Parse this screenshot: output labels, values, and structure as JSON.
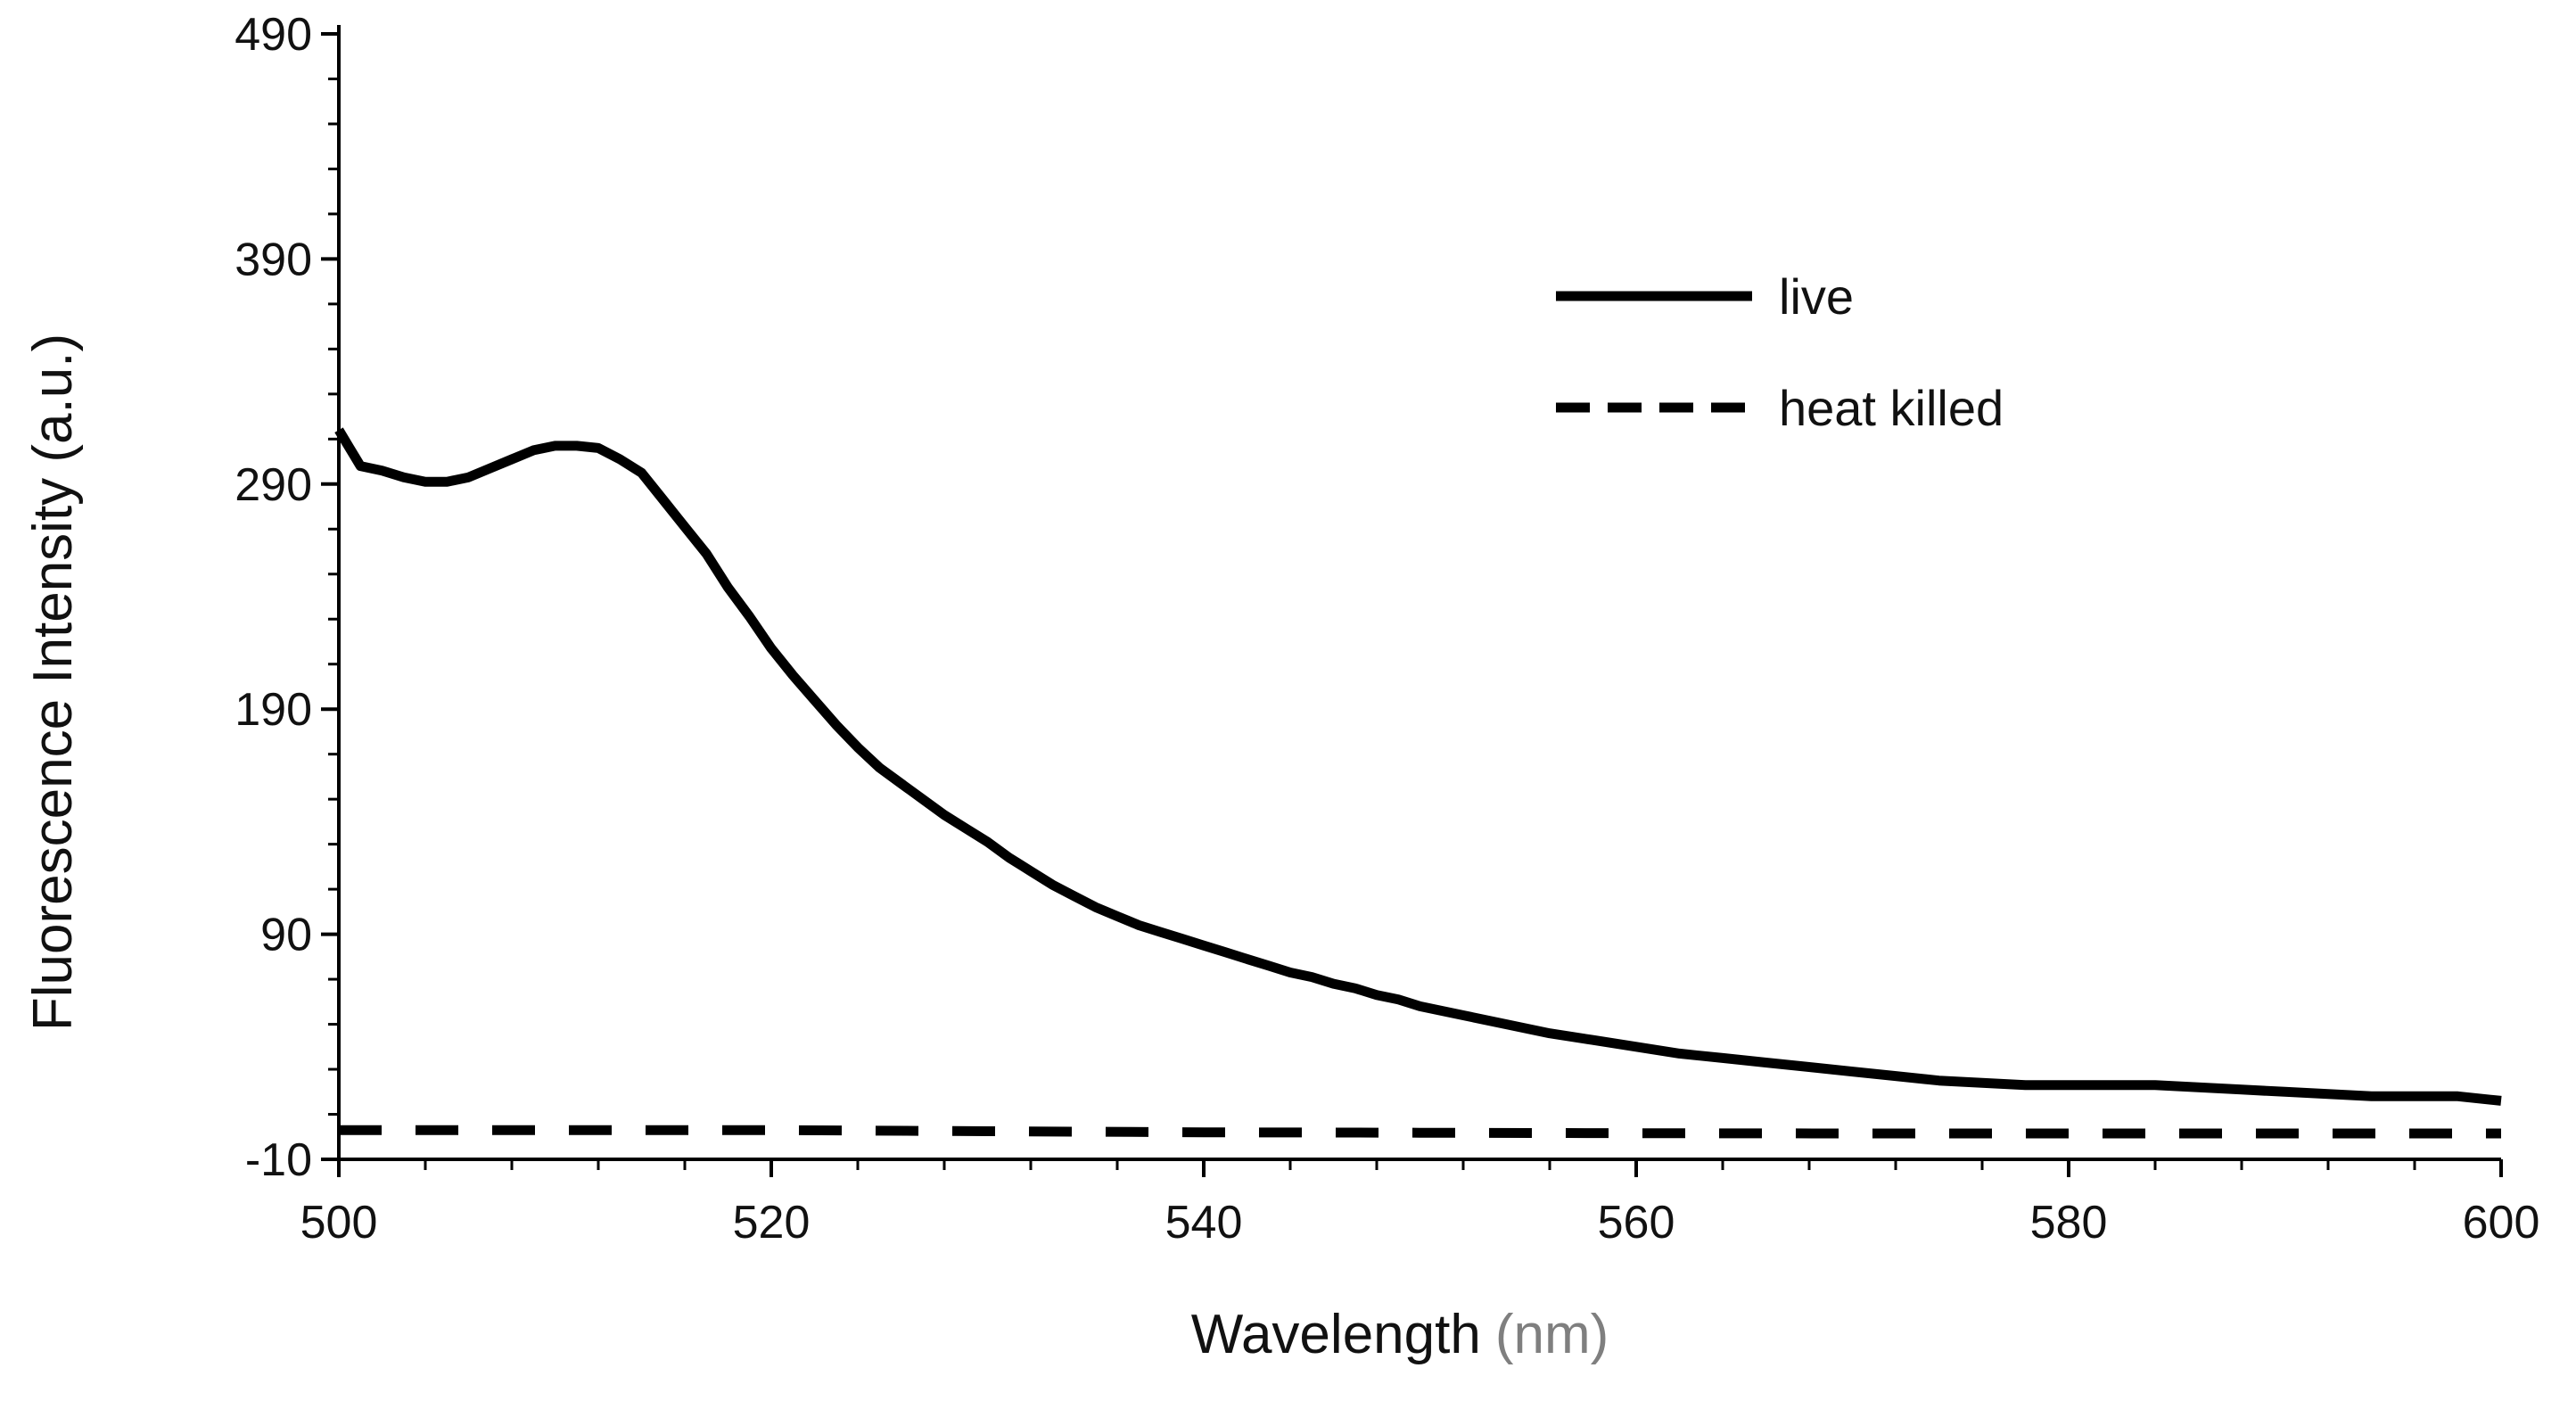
{
  "chart_data": {
    "type": "line",
    "title": "",
    "xlabel": "Wavelength",
    "xlabel_unit": "(nm)",
    "ylabel": "Fluorescence Intensity (a.u.)",
    "xlim": [
      500,
      600
    ],
    "ylim": [
      -10,
      490
    ],
    "xticks": [
      500,
      520,
      540,
      560,
      580,
      600
    ],
    "yticks": [
      -10,
      90,
      190,
      290,
      390,
      490
    ],
    "grid": false,
    "legend_position": "top-right",
    "colors": {
      "axis": "#000000",
      "series": "#000000",
      "unit_text": "#7f7f7f"
    },
    "series": [
      {
        "name": "live",
        "style": "solid",
        "x": [
          500,
          500.5,
          501,
          502,
          503,
          504,
          505,
          506,
          507,
          508,
          509,
          510,
          511,
          512,
          513,
          514,
          515,
          516,
          517,
          518,
          519,
          520,
          521,
          522,
          523,
          524,
          525,
          526,
          527,
          528,
          529,
          530,
          531,
          532,
          533,
          534,
          535,
          536,
          537,
          538,
          539,
          540,
          541,
          542,
          543,
          544,
          545,
          546,
          547,
          548,
          549,
          550,
          552,
          554,
          556,
          558,
          560,
          562,
          564,
          566,
          568,
          570,
          572,
          574,
          576,
          578,
          580,
          582,
          584,
          586,
          588,
          590,
          592,
          594,
          596,
          598,
          600
        ],
        "y": [
          314,
          306,
          298,
          296,
          293,
          291,
          291,
          293,
          297,
          301,
          305,
          307,
          307,
          306,
          301,
          295,
          283,
          271,
          259,
          244,
          231,
          217,
          205,
          194,
          183,
          173,
          164,
          157,
          150,
          143,
          137,
          131,
          124,
          118,
          112,
          107,
          102,
          98,
          94,
          91,
          88,
          85,
          82,
          79,
          76,
          73,
          71,
          68,
          66,
          63,
          61,
          58,
          54,
          50,
          46,
          43,
          40,
          37,
          35,
          33,
          31,
          29,
          27,
          25,
          24,
          23,
          23,
          23,
          23,
          22,
          21,
          20,
          19,
          18,
          18,
          18,
          16
        ]
      },
      {
        "name": "heat killed",
        "style": "dashed",
        "x": [
          500,
          510,
          520,
          530,
          540,
          550,
          560,
          570,
          580,
          590,
          600
        ],
        "y": [
          3,
          3,
          3,
          2.5,
          2,
          1.8,
          1.6,
          1.5,
          1.5,
          1.5,
          1.5
        ]
      }
    ]
  }
}
